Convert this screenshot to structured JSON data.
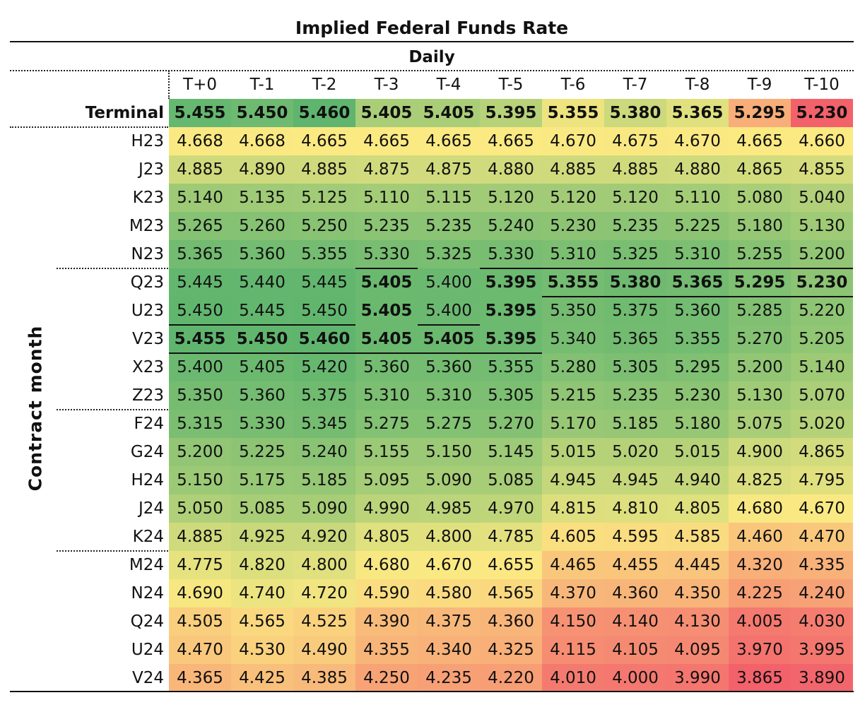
{
  "chart_data": {
    "type": "heatmap",
    "title": "Implied Federal Funds Rate",
    "subtitle": "Daily",
    "ylabel": "Contract month",
    "columns": [
      "T+0",
      "T-1",
      "T-2",
      "T-3",
      "T-4",
      "T-5",
      "T-6",
      "T-7",
      "T-8",
      "T-9",
      "T-10"
    ],
    "terminal": {
      "label": "Terminal",
      "values": [
        5.455,
        5.45,
        5.46,
        5.405,
        5.405,
        5.395,
        5.355,
        5.38,
        5.365,
        5.295,
        5.23
      ]
    },
    "rows": [
      {
        "label": "H23",
        "values": [
          4.668,
          4.668,
          4.665,
          4.665,
          4.665,
          4.665,
          4.67,
          4.675,
          4.67,
          4.665,
          4.66
        ]
      },
      {
        "label": "J23",
        "values": [
          4.885,
          4.89,
          4.885,
          4.875,
          4.875,
          4.88,
          4.885,
          4.885,
          4.88,
          4.865,
          4.855
        ]
      },
      {
        "label": "K23",
        "values": [
          5.14,
          5.135,
          5.125,
          5.11,
          5.115,
          5.12,
          5.12,
          5.12,
          5.11,
          5.08,
          5.04
        ]
      },
      {
        "label": "M23",
        "values": [
          5.265,
          5.26,
          5.25,
          5.235,
          5.235,
          5.24,
          5.23,
          5.235,
          5.225,
          5.18,
          5.13
        ]
      },
      {
        "label": "N23",
        "values": [
          5.365,
          5.36,
          5.355,
          5.33,
          5.325,
          5.33,
          5.31,
          5.325,
          5.31,
          5.255,
          5.2
        ]
      },
      {
        "label": "Q23",
        "values": [
          5.445,
          5.44,
          5.445,
          5.405,
          5.4,
          5.395,
          5.355,
          5.38,
          5.365,
          5.295,
          5.23
        ]
      },
      {
        "label": "U23",
        "values": [
          5.45,
          5.445,
          5.45,
          5.405,
          5.4,
          5.395,
          5.35,
          5.375,
          5.36,
          5.285,
          5.22
        ]
      },
      {
        "label": "V23",
        "values": [
          5.455,
          5.45,
          5.46,
          5.405,
          5.405,
          5.395,
          5.34,
          5.365,
          5.355,
          5.27,
          5.205
        ]
      },
      {
        "label": "X23",
        "values": [
          5.4,
          5.405,
          5.42,
          5.36,
          5.36,
          5.355,
          5.28,
          5.305,
          5.295,
          5.2,
          5.14
        ]
      },
      {
        "label": "Z23",
        "values": [
          5.35,
          5.36,
          5.375,
          5.31,
          5.31,
          5.305,
          5.215,
          5.235,
          5.23,
          5.13,
          5.07
        ]
      },
      {
        "label": "F24",
        "values": [
          5.315,
          5.33,
          5.345,
          5.275,
          5.275,
          5.27,
          5.17,
          5.185,
          5.18,
          5.075,
          5.02
        ]
      },
      {
        "label": "G24",
        "values": [
          5.2,
          5.225,
          5.24,
          5.155,
          5.15,
          5.145,
          5.015,
          5.02,
          5.015,
          4.9,
          4.865
        ]
      },
      {
        "label": "H24",
        "values": [
          5.15,
          5.175,
          5.185,
          5.095,
          5.09,
          5.085,
          4.945,
          4.945,
          4.94,
          4.825,
          4.795
        ]
      },
      {
        "label": "J24",
        "values": [
          5.05,
          5.085,
          5.09,
          4.99,
          4.985,
          4.97,
          4.815,
          4.81,
          4.805,
          4.68,
          4.67
        ]
      },
      {
        "label": "K24",
        "values": [
          4.885,
          4.925,
          4.92,
          4.805,
          4.8,
          4.785,
          4.605,
          4.595,
          4.585,
          4.46,
          4.47
        ]
      },
      {
        "label": "M24",
        "values": [
          4.775,
          4.82,
          4.8,
          4.68,
          4.67,
          4.655,
          4.465,
          4.455,
          4.445,
          4.32,
          4.335
        ]
      },
      {
        "label": "N24",
        "values": [
          4.69,
          4.74,
          4.72,
          4.59,
          4.58,
          4.565,
          4.37,
          4.36,
          4.35,
          4.225,
          4.24
        ]
      },
      {
        "label": "Q24",
        "values": [
          4.505,
          4.565,
          4.525,
          4.39,
          4.375,
          4.36,
          4.15,
          4.14,
          4.13,
          4.005,
          4.03
        ]
      },
      {
        "label": "U24",
        "values": [
          4.47,
          4.53,
          4.49,
          4.355,
          4.34,
          4.325,
          4.115,
          4.105,
          4.095,
          3.97,
          3.995
        ]
      },
      {
        "label": "V24",
        "values": [
          4.365,
          4.425,
          4.385,
          4.25,
          4.235,
          4.22,
          4.01,
          4.0,
          3.99,
          3.865,
          3.89
        ]
      }
    ],
    "color_scale": {
      "low": "#f3616b",
      "mid": "#fbe982",
      "high": "#5fb56e"
    },
    "highlight": "the maximum value in each column is shown in bold"
  }
}
